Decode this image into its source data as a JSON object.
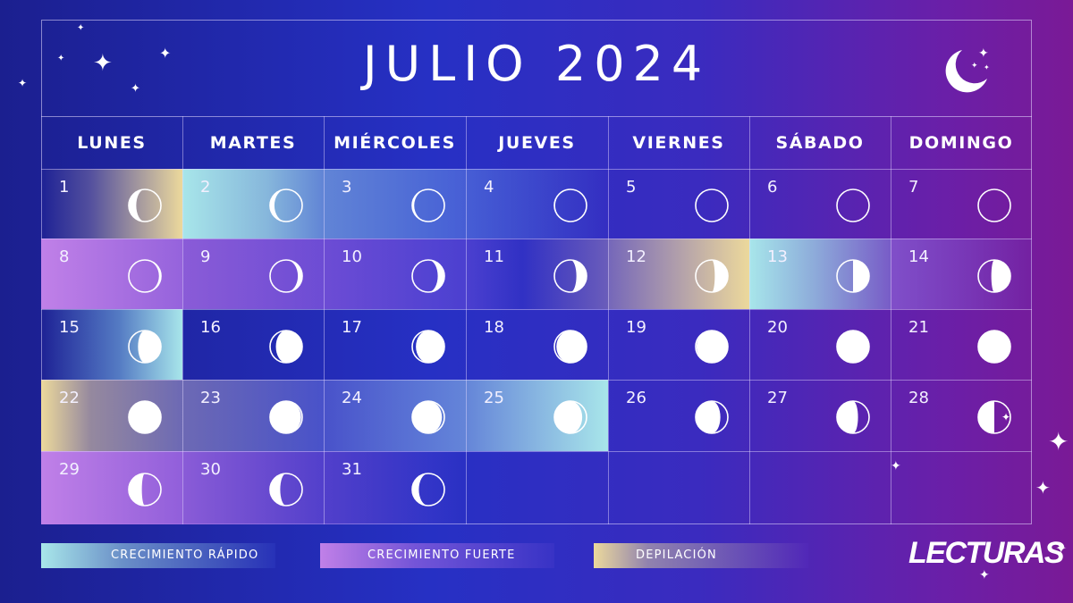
{
  "title": "JULIO 2024",
  "weekdays": [
    "LUNES",
    "MARTES",
    "MIÉRCOLES",
    "JUEVES",
    "VIERNES",
    "SÁBADO",
    "DOMINGO"
  ],
  "days": [
    {
      "n": "1",
      "phase": 0.84,
      "hl": "depilacion-left"
    },
    {
      "n": "2",
      "phase": 0.88,
      "hl": "rapido-left"
    },
    {
      "n": "3",
      "phase": 0.92,
      "hl": "rapido-mid"
    },
    {
      "n": "4",
      "phase": 0.95,
      "hl": "rapido-end"
    },
    {
      "n": "5",
      "phase": 0.97,
      "hl": ""
    },
    {
      "n": "6",
      "phase": 0.0,
      "hl": ""
    },
    {
      "n": "7",
      "phase": 0.03,
      "hl": ""
    },
    {
      "n": "8",
      "phase": 0.08,
      "hl": "fuerte-start"
    },
    {
      "n": "9",
      "phase": 0.12,
      "hl": "fuerte-mid"
    },
    {
      "n": "10",
      "phase": 0.15,
      "hl": "fuerte-mid2"
    },
    {
      "n": "11",
      "phase": 0.19,
      "hl": "fuerte-end"
    },
    {
      "n": "12",
      "phase": 0.22,
      "hl": "depilacion-right"
    },
    {
      "n": "13",
      "phase": 0.25,
      "hl": "rapido-start"
    },
    {
      "n": "14",
      "phase": 0.28,
      "hl": "fuerte-end2"
    },
    {
      "n": "15",
      "phase": 0.32,
      "hl": "rapido-right"
    },
    {
      "n": "16",
      "phase": 0.36,
      "hl": ""
    },
    {
      "n": "17",
      "phase": 0.39,
      "hl": ""
    },
    {
      "n": "18",
      "phase": 0.42,
      "hl": ""
    },
    {
      "n": "19",
      "phase": 0.45,
      "hl": ""
    },
    {
      "n": "20",
      "phase": 0.47,
      "hl": ""
    },
    {
      "n": "21",
      "phase": 0.5,
      "hl": ""
    },
    {
      "n": "22",
      "phase": 0.53,
      "hl": "depilacion-left2"
    },
    {
      "n": "23",
      "phase": 0.56,
      "hl": "grad-mid"
    },
    {
      "n": "24",
      "phase": 0.59,
      "hl": "grad-mid2"
    },
    {
      "n": "25",
      "phase": 0.62,
      "hl": "rapido-right2"
    },
    {
      "n": "26",
      "phase": 0.66,
      "hl": ""
    },
    {
      "n": "27",
      "phase": 0.7,
      "hl": ""
    },
    {
      "n": "28",
      "phase": 0.75,
      "hl": ""
    },
    {
      "n": "29",
      "phase": 0.78,
      "hl": "fuerte-start2"
    },
    {
      "n": "30",
      "phase": 0.81,
      "hl": "fuerte-fade"
    },
    {
      "n": "31",
      "phase": 0.85,
      "hl": "fuerte-fade2"
    }
  ],
  "legend": [
    {
      "label": "CRECIMIENTO RÁPIDO",
      "color": "#a8e6ea"
    },
    {
      "label": "CRECIMIENTO FUERTE",
      "color": "#c080e8"
    },
    {
      "label": "DEPILACIÓN",
      "color": "#ecd99c"
    }
  ],
  "brand": "LECTURAS"
}
